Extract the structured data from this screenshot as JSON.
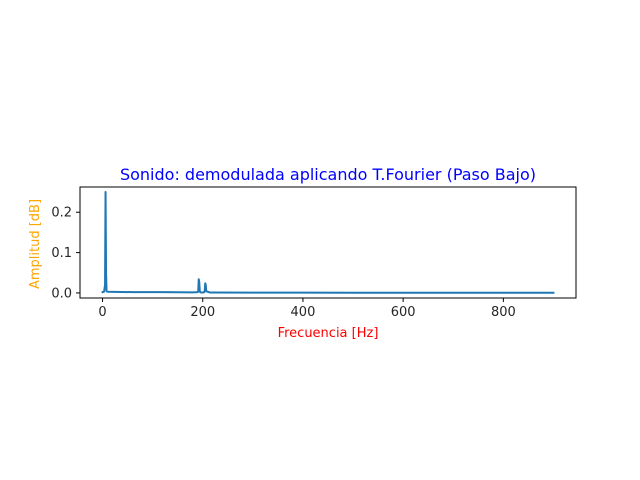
{
  "chart_data": {
    "type": "line",
    "title": "Sonido: demodulada aplicando T.Fourier (Paso Bajo)",
    "xlabel": "Frecuencia [Hz]",
    "ylabel": "Amplitud [dB]",
    "xlim": [
      -45,
      945
    ],
    "ylim": [
      -0.0125,
      0.2625
    ],
    "xticks": [
      0,
      200,
      400,
      600,
      800
    ],
    "xtick_labels": [
      "0",
      "200",
      "400",
      "600",
      "800"
    ],
    "yticks": [
      0.0,
      0.1,
      0.2
    ],
    "ytick_labels": [
      "0.0",
      "0.1",
      "0.2"
    ],
    "grid": false,
    "series": [
      {
        "color": "#1f77b4",
        "x": [
          0,
          3,
          5,
          6,
          7,
          8,
          10,
          60,
          120,
          180,
          190,
          191,
          192,
          193,
          194,
          195,
          200,
          203,
          204,
          205,
          206,
          207,
          215,
          300,
          400,
          500,
          600,
          700,
          800,
          900
        ],
        "y": [
          0.002,
          0.003,
          0.02,
          0.25,
          0.05,
          0.004,
          0.003,
          0.002,
          0.002,
          0.0015,
          0.002,
          0.005,
          0.034,
          0.028,
          0.005,
          0.0015,
          0.0012,
          0.002,
          0.006,
          0.024,
          0.02,
          0.004,
          0.001,
          0.0008,
          0.0007,
          0.0006,
          0.0006,
          0.0005,
          0.0005,
          0.0004
        ]
      }
    ],
    "colors": {
      "title": "#0000ff",
      "xlabel": "#ff0000",
      "ylabel": "#ffa500",
      "axes": "#000000"
    }
  }
}
